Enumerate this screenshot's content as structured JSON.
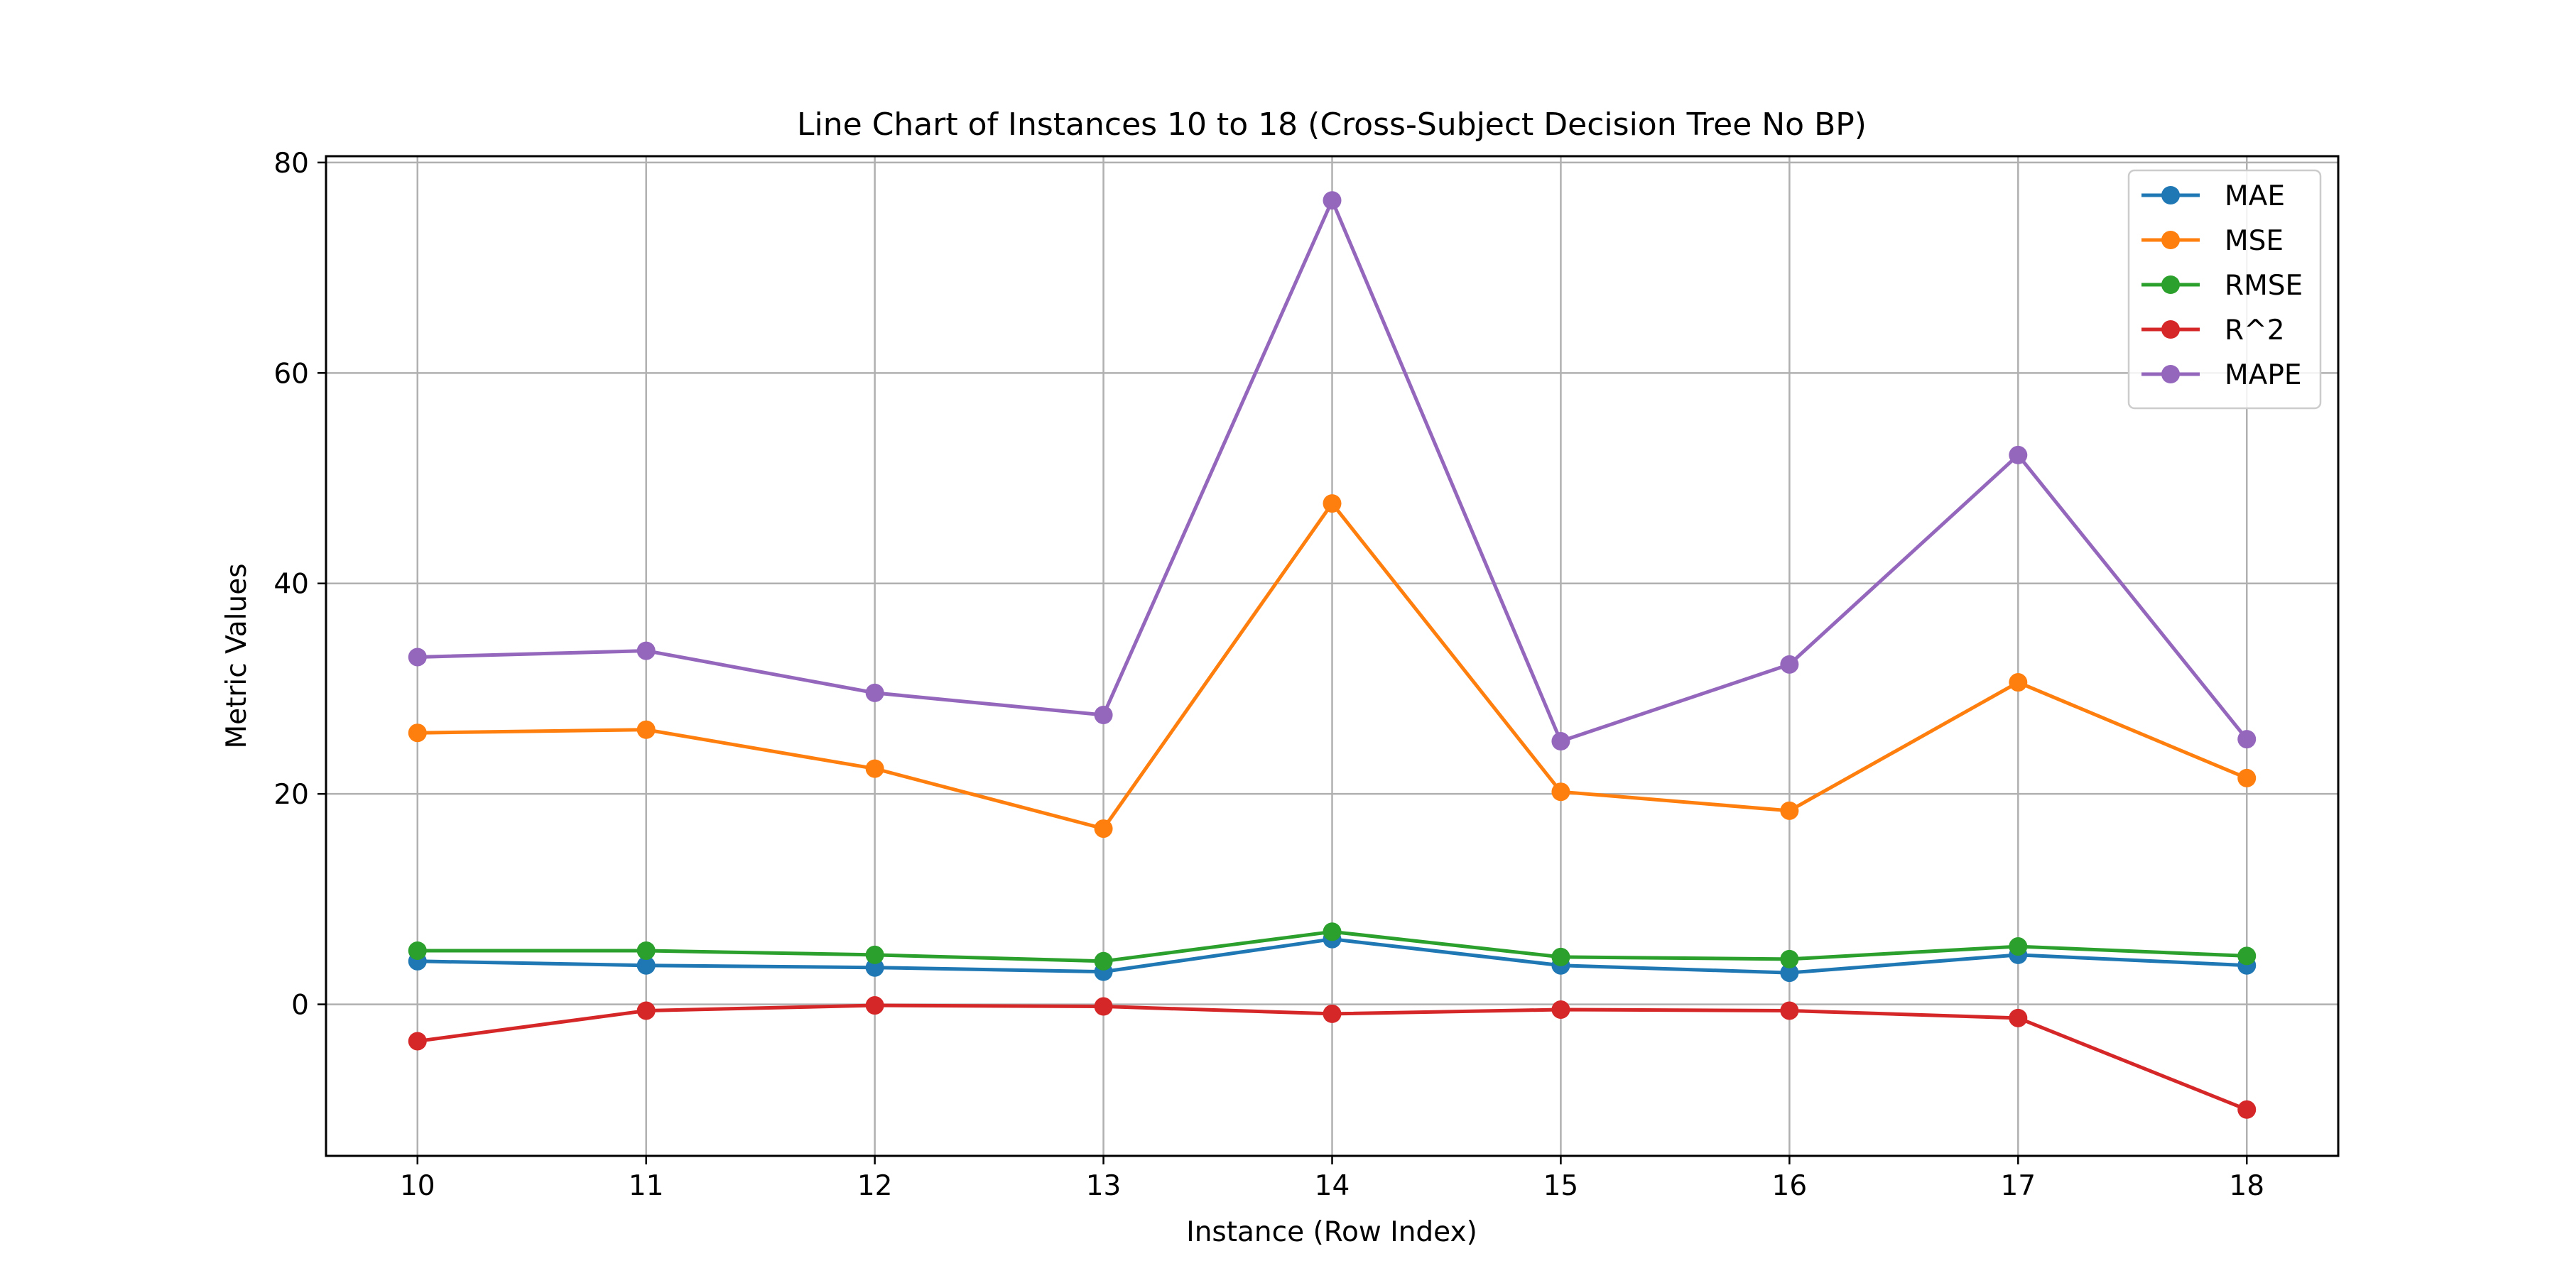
{
  "chart_data": {
    "type": "line",
    "title": "Line Chart of Instances 10 to 18 (Cross-Subject Decision Tree No BP)",
    "xlabel": "Instance (Row Index)",
    "ylabel": "Metric Values",
    "x": [
      10,
      11,
      12,
      13,
      14,
      15,
      16,
      17,
      18
    ],
    "xlim": [
      9.6,
      18.4
    ],
    "ylim": [
      -14.4,
      80.6
    ],
    "yticks": [
      0,
      20,
      40,
      60,
      80
    ],
    "grid": true,
    "legend_position": "top-right",
    "series": [
      {
        "name": "MAE",
        "color": "#1f77b4",
        "values": [
          4.1,
          3.7,
          3.5,
          3.1,
          6.2,
          3.7,
          3.0,
          4.7,
          3.7
        ]
      },
      {
        "name": "MSE",
        "color": "#ff7f0e",
        "values": [
          25.8,
          26.1,
          22.4,
          16.7,
          47.6,
          20.2,
          18.4,
          30.6,
          21.5
        ]
      },
      {
        "name": "RMSE",
        "color": "#2ca02c",
        "values": [
          5.1,
          5.1,
          4.7,
          4.1,
          6.9,
          4.5,
          4.3,
          5.5,
          4.6
        ]
      },
      {
        "name": "R^2",
        "color": "#d62728",
        "values": [
          -3.5,
          -0.6,
          -0.1,
          -0.2,
          -0.9,
          -0.5,
          -0.6,
          -1.3,
          -10.0
        ]
      },
      {
        "name": "MAPE",
        "color": "#9467bd",
        "values": [
          33.0,
          33.6,
          29.6,
          27.5,
          76.4,
          25.0,
          32.3,
          52.2,
          25.2
        ]
      }
    ]
  }
}
